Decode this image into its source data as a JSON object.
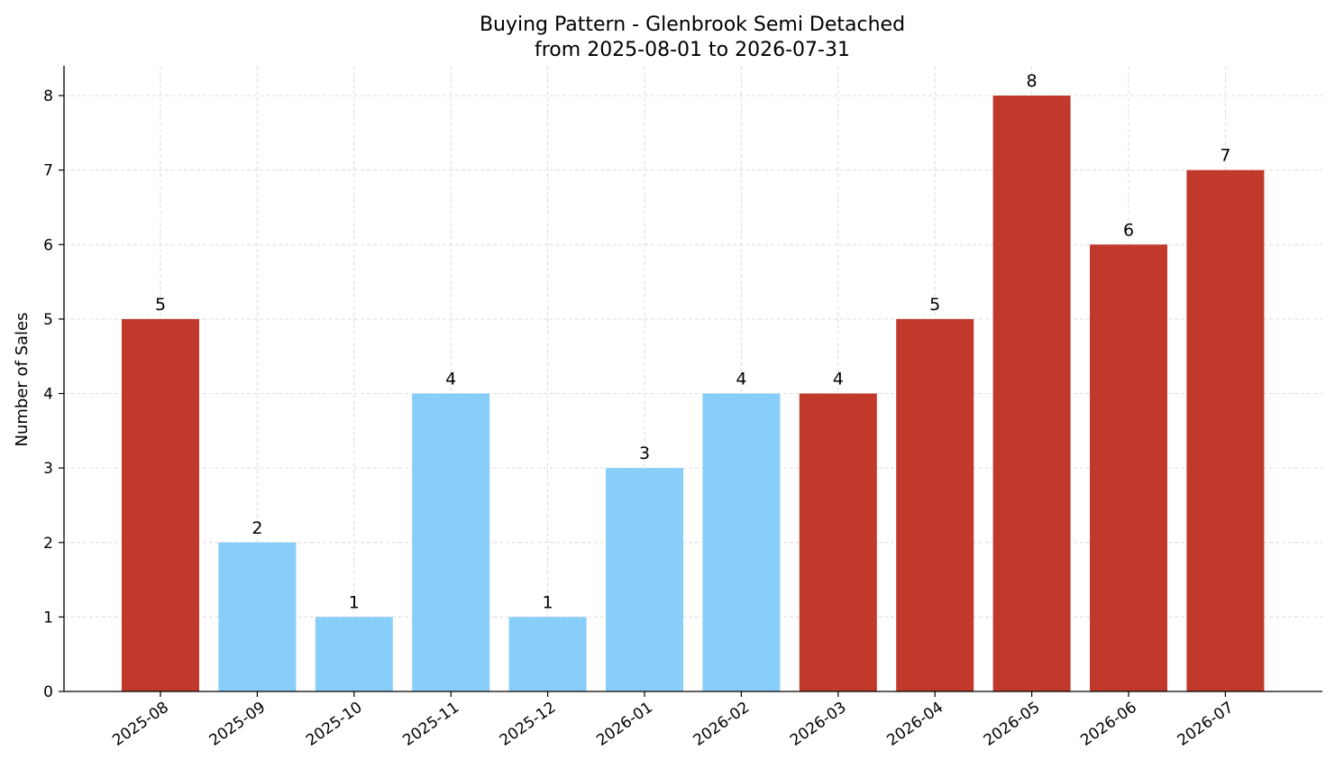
{
  "chart_data": {
    "type": "bar",
    "title": "Buying Pattern - Glenbrook Semi Detached",
    "subtitle": "from 2025-08-01 to 2026-07-31",
    "xlabel": "",
    "ylabel": "Number of Sales",
    "categories": [
      "2025-08",
      "2025-09",
      "2025-10",
      "2025-11",
      "2025-12",
      "2026-01",
      "2026-02",
      "2026-03",
      "2026-04",
      "2026-05",
      "2026-06",
      "2026-07"
    ],
    "values": [
      5,
      2,
      1,
      4,
      1,
      3,
      4,
      4,
      5,
      8,
      6,
      7
    ],
    "data_labels": [
      "5",
      "2",
      "1",
      "4",
      "1",
      "3",
      "4",
      "4",
      "5",
      "8",
      "6",
      "7"
    ],
    "bar_colors": [
      "#c0392b",
      "#87cefa",
      "#87cefa",
      "#87cefa",
      "#87cefa",
      "#87cefa",
      "#87cefa",
      "#c0392b",
      "#c0392b",
      "#c0392b",
      "#c0392b",
      "#c0392b"
    ],
    "yticks": [
      "0",
      "1",
      "2",
      "3",
      "4",
      "5",
      "6",
      "7",
      "8"
    ],
    "ylim": [
      0,
      8.4
    ],
    "grid": true,
    "legend": "none"
  }
}
